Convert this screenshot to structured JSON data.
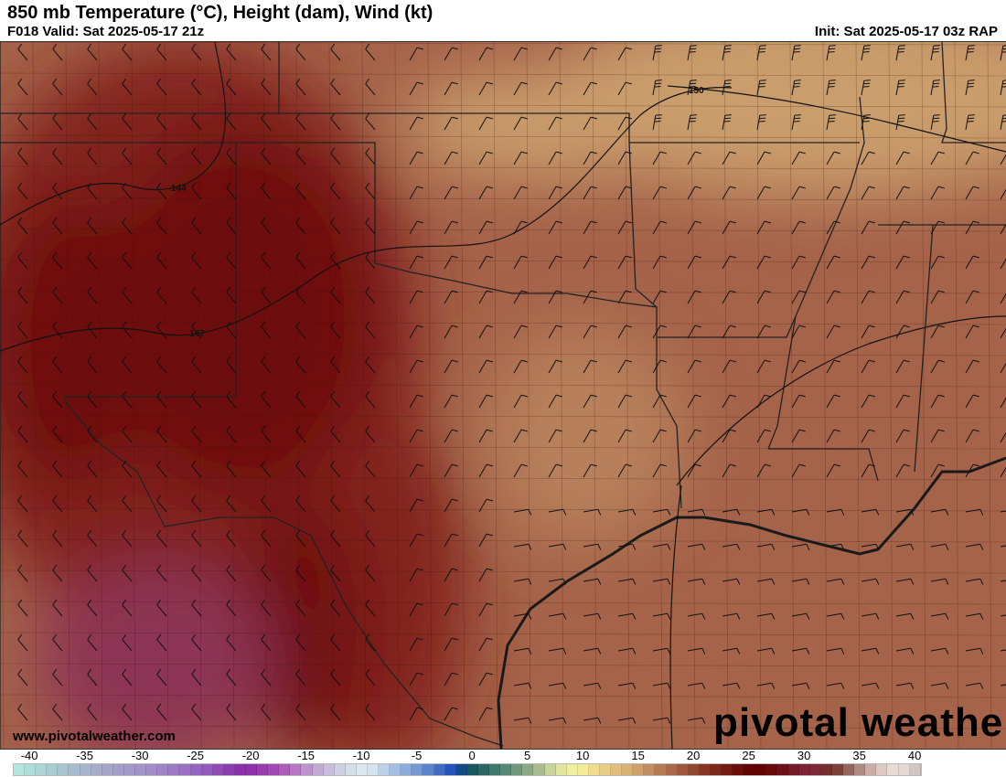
{
  "header": {
    "title": "850 mb Temperature (°C), Height (dam), Wind (kt)",
    "valid": "F018 Valid: Sat 2025-05-17 21z",
    "init": "Init: Sat 2025-05-17 03z RAP"
  },
  "footer": {
    "website": "www.pivotalweather.com",
    "brand": "pivotal weather"
  },
  "contours": {
    "labels": [
      "144",
      "147",
      "150"
    ],
    "color": "#111111"
  },
  "field_colors": {
    "base": "#a5634a",
    "tan": "#c99d6c",
    "dark_red": "#6e0c0c",
    "red": "#82241a",
    "pink": "#8c3654",
    "gulf": "#a45a3e"
  },
  "colorbar": {
    "ticks": [
      "-40",
      "-35",
      "-30",
      "-25",
      "-20",
      "-15",
      "-10",
      "-5",
      "0",
      "5",
      "10",
      "15",
      "20",
      "25",
      "30",
      "35",
      "40"
    ],
    "range": [
      -41,
      41
    ],
    "stops": [
      [
        -41,
        "#b2ebe0"
      ],
      [
        -37,
        "#a8c8d0"
      ],
      [
        -33,
        "#a6a8c8"
      ],
      [
        -28,
        "#a08ac8"
      ],
      [
        -24,
        "#9460c0"
      ],
      [
        -20,
        "#8a28a8"
      ],
      [
        -17,
        "#a850b8"
      ],
      [
        -14,
        "#c0a0d0"
      ],
      [
        -11,
        "#d0dae4"
      ],
      [
        -9,
        "#e0ecf0"
      ],
      [
        -7,
        "#b0c8e4"
      ],
      [
        -4,
        "#6890d0"
      ],
      [
        -1,
        "#1848b8"
      ],
      [
        0,
        "#0c5058"
      ],
      [
        3,
        "#4a8070"
      ],
      [
        6,
        "#98b088"
      ],
      [
        8,
        "#d8e0a0"
      ],
      [
        10,
        "#f8f4a0"
      ],
      [
        12,
        "#ecd488"
      ],
      [
        15,
        "#d4aa70"
      ],
      [
        18,
        "#b07050"
      ],
      [
        21,
        "#8c3c28"
      ],
      [
        24,
        "#701410"
      ],
      [
        26,
        "#600000"
      ],
      [
        28,
        "#6a0c10"
      ],
      [
        31,
        "#80283c"
      ],
      [
        33,
        "#6e3028"
      ],
      [
        35,
        "#a07870"
      ],
      [
        37,
        "#d8c0b8"
      ],
      [
        39,
        "#ece4dc"
      ],
      [
        41,
        "#c8bcb8"
      ]
    ]
  }
}
